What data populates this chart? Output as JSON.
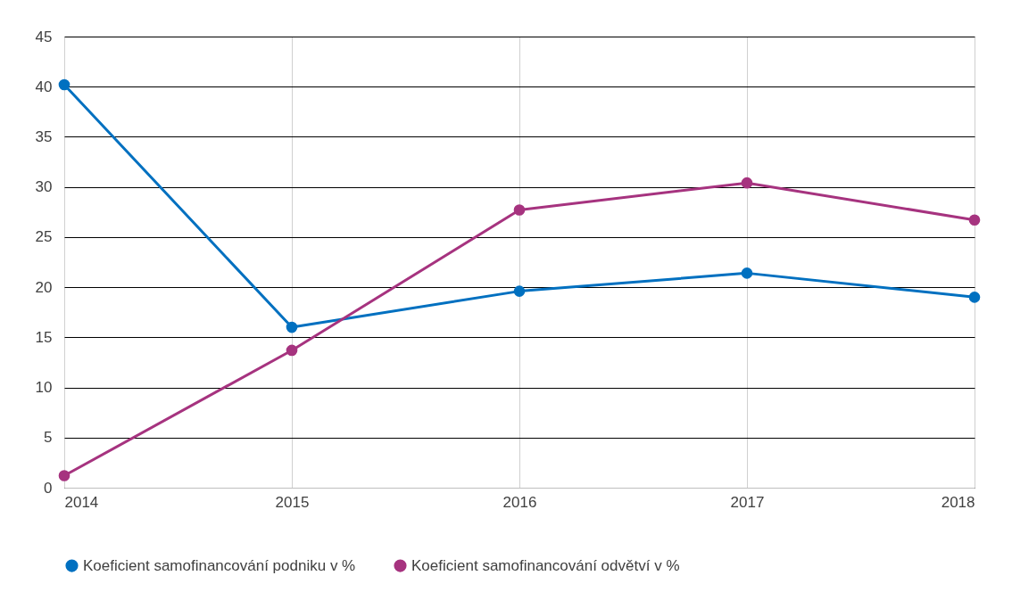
{
  "chart_data": {
    "type": "line",
    "categories": [
      "2014",
      "2015",
      "2016",
      "2017",
      "2018"
    ],
    "series": [
      {
        "name": "Koeficient samofinancování podniku v %",
        "color": "#0070c0",
        "values": [
          40.2,
          16.0,
          19.6,
          21.4,
          19.0
        ]
      },
      {
        "name": "Koeficient samofinancování odvětví v %",
        "color": "#a6337f",
        "values": [
          1.2,
          13.7,
          27.7,
          30.4,
          26.7
        ]
      }
    ],
    "ylim": [
      0,
      45
    ],
    "yticks": [
      0,
      5,
      10,
      15,
      20,
      25,
      30,
      35,
      40,
      45
    ],
    "grid": true,
    "legend": "bottom",
    "marker": "circle",
    "line_style": "solid"
  }
}
